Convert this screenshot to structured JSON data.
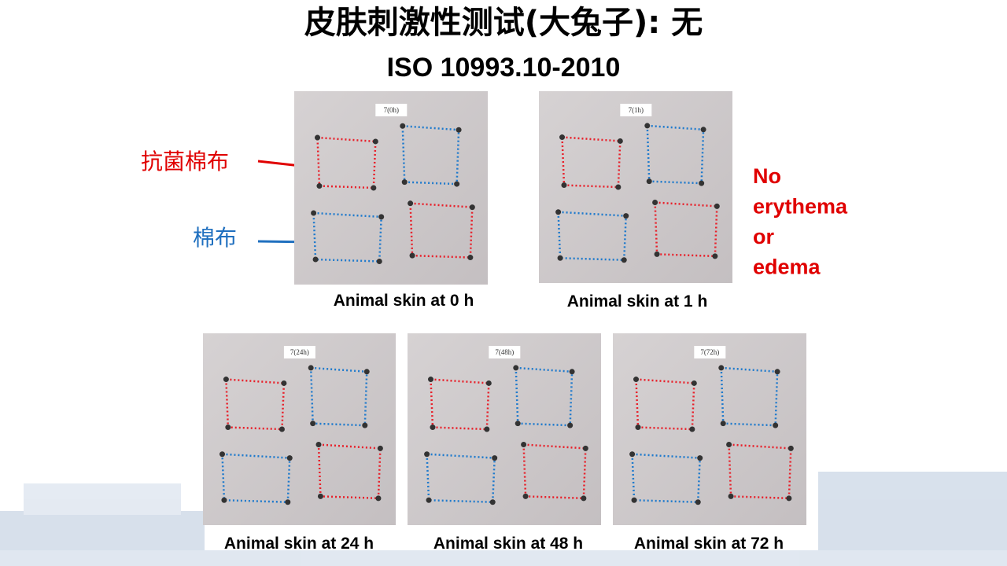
{
  "header": {
    "title": "皮肤刺激性测试(大兔子): 无",
    "subtitle": "ISO 10993.10-2010"
  },
  "legend": {
    "antibacterial": "抗菌棉布",
    "cotton": "棉布"
  },
  "note": [
    "No",
    "erythema",
    "or",
    "edema"
  ],
  "photos": [
    {
      "label": "7(0h)",
      "caption": "Animal skin at 0 h"
    },
    {
      "label": "7(1h)",
      "caption": "Animal skin at 1 h"
    },
    {
      "label": "7(24h)",
      "caption": "Animal skin at 24 h"
    },
    {
      "label": "7(48h)",
      "caption": "Animal skin at 48 h"
    },
    {
      "label": "7(72h)",
      "caption": "Animal skin at 72 h"
    }
  ]
}
